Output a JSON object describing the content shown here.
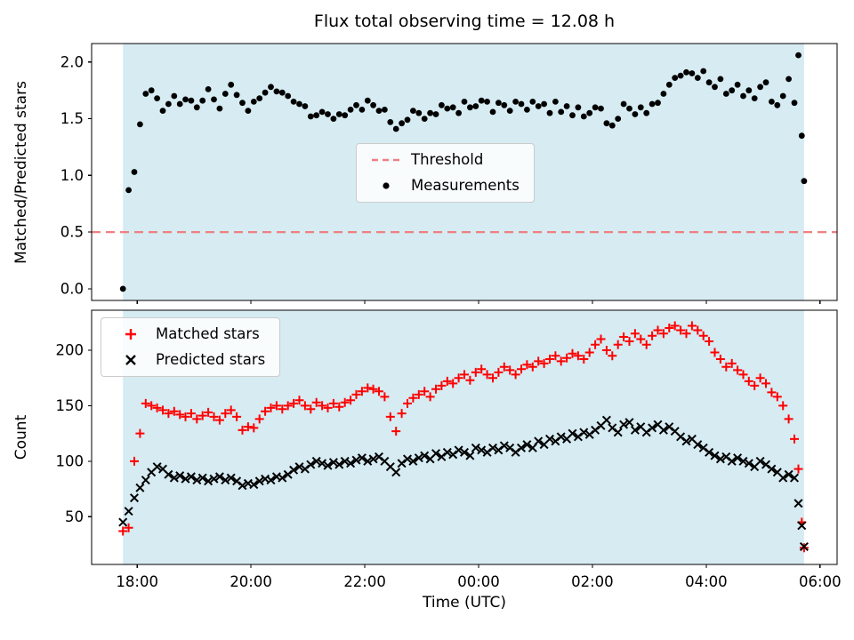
{
  "chart_data": {
    "type": "scatter",
    "title": "Flux total observing time = 12.08 h",
    "xlabel": "Time (UTC)",
    "xlim": [
      17.2,
      30.3
    ],
    "xticks": [
      18,
      20,
      22,
      24,
      26,
      28,
      30
    ],
    "xtick_labels": [
      "18:00",
      "20:00",
      "22:00",
      "00:00",
      "02:00",
      "04:00",
      "06:00"
    ],
    "shaded_span": [
      17.75,
      29.72
    ],
    "shade_color": "#d6ebf2",
    "grid": false,
    "panels": [
      {
        "ylabel": "Matched/Predicted stars",
        "ylim": [
          -0.103,
          2.163
        ],
        "ytick_values": [
          0.0,
          0.5,
          1.0,
          1.5,
          2.0
        ],
        "yticks": [
          "0.0",
          "0.5",
          "1.0",
          "1.5",
          "2.0"
        ],
        "threshold": {
          "label": "Threshold",
          "value": 0.5,
          "color": "#f08080",
          "style": "dashed"
        },
        "legend_position": "center",
        "series": [
          {
            "name": "Measurements",
            "marker": "dot",
            "color": "#000000",
            "values_key": "ratio"
          }
        ]
      },
      {
        "ylabel": "Count",
        "ylim": [
          7,
          236
        ],
        "ytick_values": [
          50,
          100,
          150,
          200
        ],
        "yticks": [
          "50",
          "100",
          "150",
          "200"
        ],
        "legend_position": "upper-left",
        "series": [
          {
            "name": "Matched stars",
            "marker": "plus",
            "color": "#ff0000",
            "values_key": "matched"
          },
          {
            "name": "Predicted stars",
            "marker": "x",
            "color": "#000000",
            "values_key": "predicted"
          }
        ]
      }
    ],
    "t": [
      17.75,
      17.85,
      17.95,
      18.05,
      18.15,
      18.25,
      18.35,
      18.45,
      18.55,
      18.65,
      18.75,
      18.85,
      18.95,
      19.05,
      19.15,
      19.25,
      19.35,
      19.45,
      19.55,
      19.65,
      19.75,
      19.85,
      19.95,
      20.05,
      20.15,
      20.25,
      20.35,
      20.45,
      20.55,
      20.65,
      20.75,
      20.85,
      20.95,
      21.05,
      21.15,
      21.25,
      21.35,
      21.45,
      21.55,
      21.65,
      21.75,
      21.85,
      21.95,
      22.05,
      22.15,
      22.25,
      22.35,
      22.45,
      22.55,
      22.65,
      22.75,
      22.85,
      22.95,
      23.05,
      23.15,
      23.25,
      23.35,
      23.45,
      23.55,
      23.65,
      23.75,
      23.85,
      23.95,
      24.05,
      24.15,
      24.25,
      24.35,
      24.45,
      24.55,
      24.65,
      24.75,
      24.85,
      24.95,
      25.05,
      25.15,
      25.25,
      25.35,
      25.45,
      25.55,
      25.65,
      25.75,
      25.85,
      25.95,
      26.05,
      26.15,
      26.25,
      26.35,
      26.45,
      26.55,
      26.65,
      26.75,
      26.85,
      26.95,
      27.05,
      27.15,
      27.25,
      27.35,
      27.45,
      27.55,
      27.65,
      27.75,
      27.85,
      27.95,
      28.05,
      28.15,
      28.25,
      28.35,
      28.45,
      28.55,
      28.65,
      28.75,
      28.85,
      28.95,
      29.05,
      29.15,
      29.25,
      29.35,
      29.45,
      29.55,
      29.62,
      29.68,
      29.72
    ],
    "ratio": [
      0.0,
      0.87,
      1.03,
      1.45,
      1.72,
      1.75,
      1.68,
      1.57,
      1.63,
      1.7,
      1.63,
      1.67,
      1.66,
      1.6,
      1.66,
      1.76,
      1.67,
      1.59,
      1.72,
      1.8,
      1.71,
      1.64,
      1.57,
      1.65,
      1.68,
      1.73,
      1.78,
      1.74,
      1.73,
      1.7,
      1.65,
      1.63,
      1.61,
      1.52,
      1.53,
      1.56,
      1.54,
      1.5,
      1.54,
      1.53,
      1.58,
      1.62,
      1.58,
      1.66,
      1.62,
      1.57,
      1.58,
      1.47,
      1.41,
      1.46,
      1.49,
      1.57,
      1.55,
      1.5,
      1.55,
      1.54,
      1.62,
      1.59,
      1.6,
      1.55,
      1.65,
      1.6,
      1.61,
      1.66,
      1.65,
      1.56,
      1.64,
      1.62,
      1.57,
      1.65,
      1.63,
      1.58,
      1.65,
      1.61,
      1.63,
      1.55,
      1.65,
      1.56,
      1.61,
      1.53,
      1.6,
      1.52,
      1.55,
      1.6,
      1.59,
      1.46,
      1.44,
      1.5,
      1.63,
      1.59,
      1.54,
      1.6,
      1.55,
      1.63,
      1.64,
      1.72,
      1.8,
      1.86,
      1.88,
      1.91,
      1.9,
      1.86,
      1.92,
      1.82,
      1.78,
      1.85,
      1.72,
      1.75,
      1.8,
      1.7,
      1.75,
      1.68,
      1.78,
      1.82,
      1.65,
      1.62,
      1.7,
      1.85,
      1.64,
      2.06,
      1.35,
      0.95
    ],
    "matched": [
      37,
      40,
      100,
      125,
      152,
      150,
      148,
      146,
      143,
      145,
      142,
      140,
      143,
      138,
      141,
      144,
      140,
      137,
      143,
      146,
      140,
      128,
      131,
      130,
      138,
      145,
      148,
      150,
      147,
      150,
      152,
      155,
      150,
      147,
      153,
      150,
      148,
      152,
      149,
      153,
      155,
      160,
      163,
      166,
      165,
      163,
      158,
      140,
      127,
      143,
      152,
      157,
      160,
      163,
      158,
      165,
      168,
      172,
      170,
      175,
      178,
      173,
      180,
      183,
      178,
      175,
      180,
      185,
      182,
      178,
      183,
      187,
      185,
      190,
      188,
      192,
      195,
      190,
      193,
      197,
      195,
      192,
      198,
      205,
      210,
      200,
      195,
      205,
      212,
      208,
      215,
      210,
      205,
      213,
      218,
      215,
      220,
      222,
      218,
      215,
      222,
      218,
      213,
      208,
      198,
      192,
      185,
      188,
      182,
      178,
      172,
      168,
      175,
      170,
      162,
      158,
      150,
      138,
      120,
      93,
      45,
      22
    ],
    "predicted": [
      45,
      55,
      67,
      76,
      83,
      90,
      95,
      93,
      88,
      85,
      87,
      84,
      86,
      83,
      85,
      82,
      84,
      86,
      83,
      85,
      82,
      78,
      80,
      79,
      82,
      84,
      83,
      86,
      85,
      88,
      92,
      95,
      93,
      97,
      100,
      98,
      96,
      99,
      97,
      100,
      98,
      101,
      103,
      100,
      102,
      104,
      100,
      95,
      90,
      98,
      102,
      100,
      103,
      105,
      102,
      107,
      104,
      108,
      106,
      110,
      108,
      105,
      112,
      110,
      108,
      112,
      110,
      114,
      112,
      108,
      112,
      115,
      112,
      118,
      115,
      120,
      118,
      122,
      120,
      125,
      122,
      126,
      124,
      128,
      132,
      137,
      130,
      126,
      133,
      135,
      128,
      131,
      126,
      130,
      133,
      128,
      131,
      127,
      122,
      118,
      120,
      115,
      112,
      108,
      105,
      102,
      104,
      100,
      103,
      100,
      98,
      95,
      100,
      97,
      93,
      90,
      85,
      88,
      85,
      62,
      42,
      23
    ]
  }
}
